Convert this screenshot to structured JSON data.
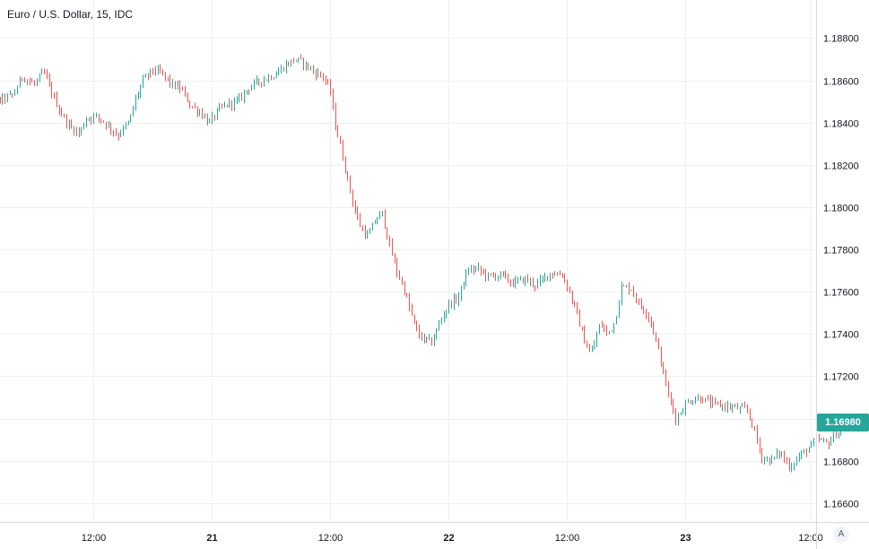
{
  "title": "Euro / U.S. Dollar, 15, IDC",
  "last_price_label": "1.16980",
  "auto_scale_label": "A",
  "colors": {
    "up": "#26a69a",
    "down": "#ef5350",
    "grid": "#eef0f3",
    "badge": "#26a69a"
  },
  "chart_data": {
    "type": "candlestick",
    "title": "Euro / U.S. Dollar, 15, IDC",
    "y_ticks": [
      "1.18800",
      "1.18600",
      "1.18400",
      "1.18200",
      "1.18000",
      "1.17800",
      "1.17600",
      "1.17400",
      "1.17200",
      "1.17000",
      "1.16800",
      "1.16600"
    ],
    "ylim": [
      1.1651,
      1.1898
    ],
    "x_ticks": [
      {
        "label": "12:00",
        "x": 0,
        "bold": false
      },
      {
        "label": "12:00",
        "x": 0.5,
        "bold": false
      },
      {
        "label": "21",
        "x": 1.0,
        "bold": true
      },
      {
        "label": "12:00",
        "x": 1.5,
        "bold": false
      },
      {
        "label": "22",
        "x": 2.0,
        "bold": true
      },
      {
        "label": "12:00",
        "x": 2.5,
        "bold": false
      },
      {
        "label": "23",
        "x": 3.0,
        "bold": true
      },
      {
        "label": "12:00",
        "x": 3.5,
        "bold": false
      }
    ],
    "x_unit": "days since Sep 20 00:00",
    "grid": true,
    "last_price": 1.1698,
    "price_path": [
      [
        -0.01,
        1.1847
      ],
      [
        0.03,
        1.1848
      ],
      [
        0.08,
        1.1849
      ],
      [
        0.12,
        1.1851
      ],
      [
        0.17,
        1.1853
      ],
      [
        0.21,
        1.1862
      ],
      [
        0.26,
        1.1858
      ],
      [
        0.3,
        1.1864
      ],
      [
        0.33,
        1.1855
      ],
      [
        0.37,
        1.1845
      ],
      [
        0.41,
        1.1838
      ],
      [
        0.45,
        1.1835
      ],
      [
        0.48,
        1.1842
      ],
      [
        0.52,
        1.1843
      ],
      [
        0.56,
        1.184
      ],
      [
        0.61,
        1.1834
      ],
      [
        0.66,
        1.184
      ],
      [
        0.69,
        1.1852
      ],
      [
        0.72,
        1.186
      ],
      [
        0.76,
        1.1865
      ],
      [
        0.8,
        1.1863
      ],
      [
        0.84,
        1.1858
      ],
      [
        0.88,
        1.1856
      ],
      [
        0.92,
        1.1848
      ],
      [
        0.96,
        1.1845
      ],
      [
        1.0,
        1.184
      ],
      [
        1.04,
        1.1846
      ],
      [
        1.08,
        1.1849
      ],
      [
        1.12,
        1.185
      ],
      [
        1.16,
        1.1856
      ],
      [
        1.2,
        1.1859
      ],
      [
        1.24,
        1.1861
      ],
      [
        1.28,
        1.1863
      ],
      [
        1.32,
        1.1867
      ],
      [
        1.36,
        1.187
      ],
      [
        1.4,
        1.1868
      ],
      [
        1.44,
        1.1864
      ],
      [
        1.48,
        1.1862
      ],
      [
        1.51,
        1.1855
      ],
      [
        1.53,
        1.184
      ],
      [
        1.56,
        1.1825
      ],
      [
        1.59,
        1.181
      ],
      [
        1.61,
        1.18
      ],
      [
        1.64,
        1.179
      ],
      [
        1.67,
        1.1786
      ],
      [
        1.7,
        1.1794
      ],
      [
        1.73,
        1.1797
      ],
      [
        1.76,
        1.1782
      ],
      [
        1.79,
        1.177
      ],
      [
        1.82,
        1.1762
      ],
      [
        1.85,
        1.175
      ],
      [
        1.88,
        1.174
      ],
      [
        1.91,
        1.1737
      ],
      [
        1.94,
        1.1736
      ],
      [
        1.97,
        1.1745
      ],
      [
        2.01,
        1.1754
      ],
      [
        2.05,
        1.1757
      ],
      [
        2.09,
        1.177
      ],
      [
        2.13,
        1.1771
      ],
      [
        2.18,
        1.1767
      ],
      [
        2.23,
        1.1768
      ],
      [
        2.28,
        1.1764
      ],
      [
        2.33,
        1.1766
      ],
      [
        2.38,
        1.1763
      ],
      [
        2.44,
        1.1769
      ],
      [
        2.49,
        1.1768
      ],
      [
        2.52,
        1.176
      ],
      [
        2.55,
        1.175
      ],
      [
        2.58,
        1.1738
      ],
      [
        2.61,
        1.173
      ],
      [
        2.65,
        1.1745
      ],
      [
        2.68,
        1.174
      ],
      [
        2.71,
        1.1745
      ],
      [
        2.74,
        1.1762
      ],
      [
        2.78,
        1.1762
      ],
      [
        2.82,
        1.1753
      ],
      [
        2.85,
        1.175
      ],
      [
        2.88,
        1.174
      ],
      [
        2.91,
        1.1725
      ],
      [
        2.94,
        1.171
      ],
      [
        2.97,
        1.17
      ],
      [
        3.02,
        1.1708
      ],
      [
        3.07,
        1.171
      ],
      [
        3.12,
        1.1707
      ],
      [
        3.17,
        1.1706
      ],
      [
        3.22,
        1.1705
      ],
      [
        3.27,
        1.1704
      ],
      [
        3.3,
        1.1695
      ],
      [
        3.33,
        1.1682
      ],
      [
        3.37,
        1.168
      ],
      [
        3.41,
        1.1684
      ],
      [
        3.45,
        1.1677
      ],
      [
        3.49,
        1.1682
      ],
      [
        3.53,
        1.1686
      ],
      [
        3.57,
        1.169
      ],
      [
        3.61,
        1.1688
      ],
      [
        3.65,
        1.1693
      ],
      [
        3.69,
        1.1698
      ]
    ]
  }
}
